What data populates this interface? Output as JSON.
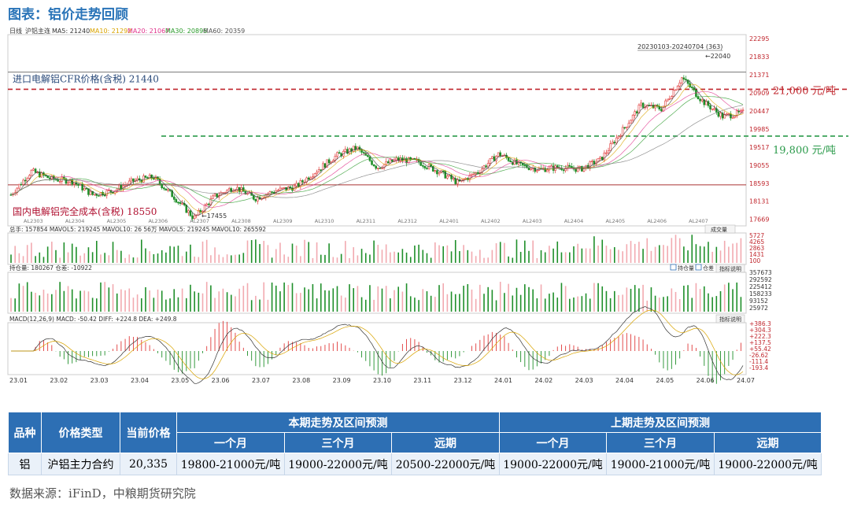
{
  "figure_title": "图表：铝价走势回顾",
  "chart_data": {
    "type": "candlestick",
    "instrument": "沪铝主连",
    "period": "日线",
    "ma_legend": [
      {
        "name": "MA5",
        "value": "21240",
        "color": "#333333"
      },
      {
        "name": "MA10",
        "value": "21292",
        "color": "#d9a400"
      },
      {
        "name": "MA20",
        "value": "21067",
        "color": "#e0338c"
      },
      {
        "name": "MA30",
        "value": "20896",
        "color": "#2a9a2a"
      },
      {
        "name": "MA60",
        "value": "20359",
        "color": "#555555"
      }
    ],
    "y_ticks": [
      "22295",
      "21833",
      "21371",
      "20909",
      "20447",
      "19985",
      "19517",
      "19055",
      "18593",
      "18131",
      "17669"
    ],
    "ylim": [
      17500,
      22400
    ],
    "x_ticks": [
      "23.01",
      "23.02",
      "23.03",
      "23.04",
      "23.05",
      "23.06",
      "23.07",
      "23.08",
      "23.09",
      "23.10",
      "23.11",
      "23.12",
      "24.01",
      "24.02",
      "24.03",
      "24.04",
      "24.05",
      "24.06",
      "24.07"
    ],
    "contract_labels": [
      "AL2303",
      "AL2304",
      "AL2305",
      "AL2306",
      "AL2307",
      "AL2308",
      "AL2309",
      "AL2310",
      "AL2311",
      "AL2312",
      "AL2401",
      "AL2402",
      "AL2403",
      "AL2404",
      "AL2405",
      "AL2406",
      "AL2407"
    ],
    "range_label": "20230103-20240704 (363)",
    "high_label": "22040",
    "low_label": "17455",
    "price_path": [
      {
        "d": "23.01",
        "p": 18300
      },
      {
        "d": "23.01b",
        "p": 18900
      },
      {
        "d": "23.02",
        "p": 18700
      },
      {
        "d": "23.02b",
        "p": 18650
      },
      {
        "d": "23.03",
        "p": 18300
      },
      {
        "d": "23.03b",
        "p": 18400
      },
      {
        "d": "23.04",
        "p": 18650
      },
      {
        "d": "23.04b",
        "p": 18750
      },
      {
        "d": "23.05",
        "p": 18250
      },
      {
        "d": "23.05b",
        "p": 17700
      },
      {
        "d": "23.06",
        "p": 18250
      },
      {
        "d": "23.06b",
        "p": 18500
      },
      {
        "d": "23.07",
        "p": 18200
      },
      {
        "d": "23.07b",
        "p": 18400
      },
      {
        "d": "23.08",
        "p": 18500
      },
      {
        "d": "23.08b",
        "p": 18900
      },
      {
        "d": "23.09",
        "p": 19300
      },
      {
        "d": "23.09b",
        "p": 19500
      },
      {
        "d": "23.10",
        "p": 19000
      },
      {
        "d": "23.10b",
        "p": 19200
      },
      {
        "d": "23.11",
        "p": 19150
      },
      {
        "d": "23.11b",
        "p": 18900
      },
      {
        "d": "23.12",
        "p": 18600
      },
      {
        "d": "23.12b",
        "p": 18900
      },
      {
        "d": "24.01",
        "p": 19350
      },
      {
        "d": "24.01b",
        "p": 19050
      },
      {
        "d": "24.02",
        "p": 18950
      },
      {
        "d": "24.02b",
        "p": 19000
      },
      {
        "d": "24.03",
        "p": 18950
      },
      {
        "d": "24.03b",
        "p": 19200
      },
      {
        "d": "24.04",
        "p": 19900
      },
      {
        "d": "24.04b",
        "p": 20600
      },
      {
        "d": "24.05",
        "p": 20500
      },
      {
        "d": "24.05b",
        "p": 21300
      },
      {
        "d": "24.06",
        "p": 20700
      },
      {
        "d": "24.06b",
        "p": 20300
      },
      {
        "d": "24.07",
        "p": 20400
      }
    ],
    "annotations": {
      "import_line": {
        "label": "进口电解铝CFR价格(含税) 21440",
        "value": 21440
      },
      "cost_line": {
        "label": "国内电解铝完全成本(含税) 18550",
        "value": 18550
      },
      "upper_forecast": {
        "label": "21,000 元/吨",
        "value": 21000,
        "color": "#c0262d"
      },
      "lower_forecast": {
        "label": "19,800 元/吨",
        "value": 19800,
        "color": "#2a9a4a"
      }
    },
    "volume_legend": "总手: 157854  MAVOL5: 219245  MAVOL10: 26 56万  MAVOL5: 219245  MAVOL10: 265592",
    "volume_ticks": [
      "5727",
      "4265",
      "2863",
      "1431",
      "100"
    ],
    "volume_button": "成交量",
    "oi_legend": "持仓量: 180267  仓差: -10922",
    "oi_ticks": [
      "357673",
      "292592",
      "225412",
      "158233",
      "93152",
      "25972"
    ],
    "oi_checks": [
      "持仓量",
      "仓差"
    ],
    "oi_button": "指标说明",
    "macd_legend": "MACD(12,26,9)  MACD: -50.42  DIFF: +224.8  DEA: +249.8",
    "macd_ticks": [
      "+386.3",
      "+304.3",
      "+222.3",
      "+137.5",
      "+55.42",
      "-26.62",
      "-111.4",
      "-193.4"
    ],
    "macd_button": "指标说明"
  },
  "table": {
    "headers_row1": [
      "品种",
      "价格类型",
      "当前价格",
      "本期走势及区间预测",
      "上期走势及区间预测"
    ],
    "headers_row2": [
      "一个月",
      "三个月",
      "远期",
      "一个月",
      "三个月",
      "远期"
    ],
    "row": [
      "铝",
      "沪铝主力合约",
      "20,335",
      "19800-21000元/吨",
      "19000-22000元/吨",
      "20500-22000元/吨",
      "19000-22000元/吨",
      "19000-21000元/吨",
      "19000-22000元/吨"
    ]
  },
  "source": "数据来源：iFinD，中粮期货研究院"
}
